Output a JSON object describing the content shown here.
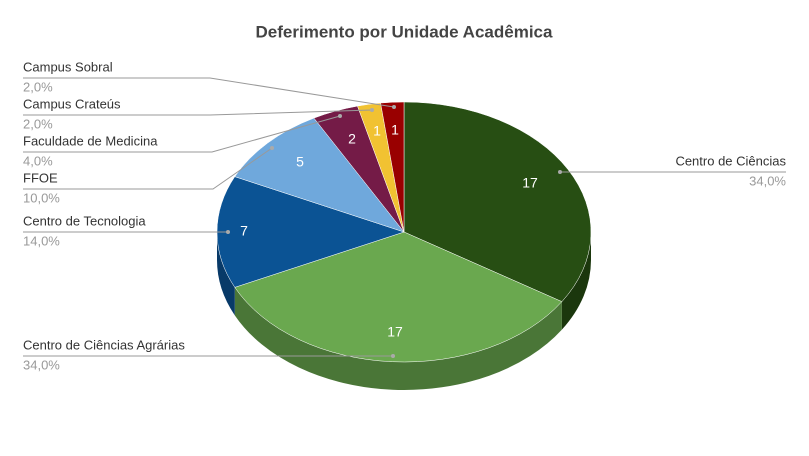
{
  "chart_data": {
    "type": "pie3d",
    "title": "Deferimento por Unidade Acadêmica",
    "categories": [
      "Centro de Ciências",
      "Centro de Ciências Agrárias",
      "Centro de Tecnologia",
      "FFOE",
      "Faculdade de Medicina",
      "Campus Crateús",
      "Campus Sobral"
    ],
    "values": [
      17,
      17,
      7,
      5,
      2,
      1,
      1
    ],
    "percent_labels": [
      "34,0%",
      "34,0%",
      "14,0%",
      "10,0%",
      "4,0%",
      "2,0%",
      "2,0%"
    ],
    "colors": [
      "#274e13",
      "#6aa84f",
      "#0b5394",
      "#6fa8dc",
      "#741b47",
      "#f1c232",
      "#990000"
    ]
  }
}
